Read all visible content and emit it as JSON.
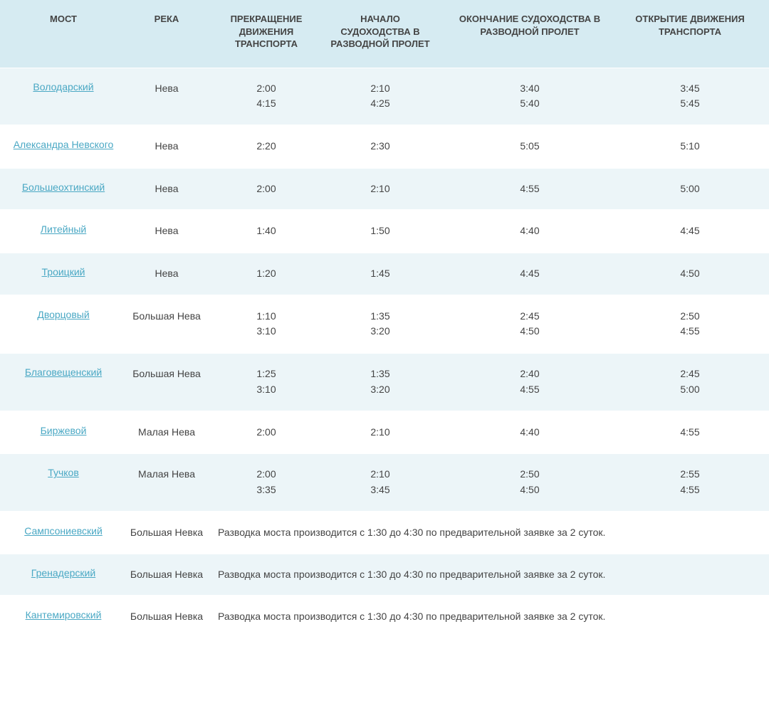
{
  "colors": {
    "header_bg": "#d6ebf2",
    "row_alt_bg": "#ecf5f8",
    "row_plain_bg": "#ffffff",
    "link_color": "#4aa8c4",
    "text_color": "#444444",
    "border_color": "#ffffff"
  },
  "columns": {
    "bridge": "МОСТ",
    "river": "РЕКА",
    "stop": "ПРЕКРАЩЕНИЕ ДВИЖЕНИЯ ТРАНСПОРТА",
    "start": "НАЧАЛО СУДОХОДСТВА В РАЗВОДНОЙ ПРОЛЕТ",
    "end": "ОКОНЧАНИЕ СУДОХОДСТВА В РАЗВОДНОЙ ПРОЛЕТ",
    "open": "ОТКРЫТИЕ ДВИЖЕНИЯ ТРАНСПОРТА"
  },
  "rows": [
    {
      "bridge": "Володарский",
      "river": "Нева",
      "stop": [
        "2:00",
        "4:15"
      ],
      "start": [
        "2:10",
        "4:25"
      ],
      "end": [
        "3:40",
        "5:40"
      ],
      "open": [
        "3:45",
        "5:45"
      ],
      "alt": true
    },
    {
      "bridge": "Александра Невского",
      "river": "Нева",
      "stop": [
        "2:20"
      ],
      "start": [
        "2:30"
      ],
      "end": [
        "5:05"
      ],
      "open": [
        "5:10"
      ],
      "alt": false
    },
    {
      "bridge": "Большеохтинский",
      "river": "Нева",
      "stop": [
        "2:00"
      ],
      "start": [
        "2:10"
      ],
      "end": [
        "4:55"
      ],
      "open": [
        "5:00"
      ],
      "alt": true
    },
    {
      "bridge": "Литейный",
      "river": "Нева",
      "stop": [
        "1:40"
      ],
      "start": [
        "1:50"
      ],
      "end": [
        "4:40"
      ],
      "open": [
        "4:45"
      ],
      "alt": false
    },
    {
      "bridge": "Троицкий",
      "river": "Нева",
      "stop": [
        "1:20"
      ],
      "start": [
        "1:45"
      ],
      "end": [
        "4:45"
      ],
      "open": [
        "4:50"
      ],
      "alt": true
    },
    {
      "bridge": "Дворцовый",
      "river": "Большая Нева",
      "stop": [
        "1:10",
        "3:10"
      ],
      "start": [
        "1:35",
        "3:20"
      ],
      "end": [
        "2:45",
        "4:50"
      ],
      "open": [
        "2:50",
        "4:55"
      ],
      "alt": false
    },
    {
      "bridge": "Благовещенский",
      "river": "Большая Нева",
      "stop": [
        "1:25",
        "3:10"
      ],
      "start": [
        "1:35",
        "3:20"
      ],
      "end": [
        "2:40",
        "4:55"
      ],
      "open": [
        "2:45",
        "5:00"
      ],
      "alt": true
    },
    {
      "bridge": "Биржевой",
      "river": "Малая Нева",
      "stop": [
        "2:00"
      ],
      "start": [
        "2:10"
      ],
      "end": [
        "4:40"
      ],
      "open": [
        "4:55"
      ],
      "alt": false
    },
    {
      "bridge": "Тучков",
      "river": "Малая Нева",
      "stop": [
        "2:00",
        "3:35"
      ],
      "start": [
        "2:10",
        "3:45"
      ],
      "end": [
        "2:50",
        "4:50"
      ],
      "open": [
        "2:55",
        "4:55"
      ],
      "alt": true
    },
    {
      "bridge": "Сампсониевский",
      "river": "Большая Невка",
      "note": "Разводка моста производится с 1:30 до 4:30 по предварительной заявке за 2 суток.",
      "alt": false
    },
    {
      "bridge": "Гренадерский",
      "river": "Большая Невка",
      "note": "Разводка моста производится с 1:30 до 4:30 по предварительной заявке за 2 суток.",
      "alt": true
    },
    {
      "bridge": "Кантемировский",
      "river": "Большая Невка",
      "note": "Разводка моста производится с 1:30 до 4:30 по предварительной заявке за 2 суток.",
      "alt": false
    }
  ]
}
